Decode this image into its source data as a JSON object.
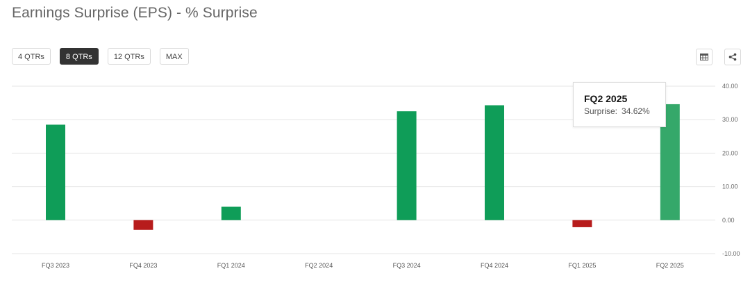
{
  "title": "Earnings Surprise (EPS) - % Surprise",
  "periods": [
    {
      "label": "4 QTRs",
      "active": false
    },
    {
      "label": "8 QTRs",
      "active": true
    },
    {
      "label": "12 QTRs",
      "active": false
    },
    {
      "label": "MAX",
      "active": false
    }
  ],
  "toolbar": {
    "table_icon": "table-icon",
    "share_icon": "share-icon"
  },
  "tooltip": {
    "title": "FQ2 2025",
    "label": "Surprise:",
    "value": "34.62%"
  },
  "colors": {
    "positive": "#0f9d58",
    "positive_highlight": "#35a86a",
    "negative": "#b71c1c",
    "grid": "#e6e6e6"
  },
  "chart_data": {
    "type": "bar",
    "title": "Earnings Surprise (EPS) - % Surprise",
    "categories": [
      "FQ3 2023",
      "FQ4 2023",
      "FQ1 2024",
      "FQ2 2024",
      "FQ3 2024",
      "FQ4 2024",
      "FQ1 2025",
      "FQ2 2025"
    ],
    "values": [
      28.5,
      -2.9,
      4.0,
      0,
      32.5,
      34.3,
      -2.1,
      34.62
    ],
    "ylim": [
      -10,
      40
    ],
    "yticks": [
      "40.00",
      "30.00",
      "20.00",
      "10.00",
      "0.00",
      "-10.00"
    ],
    "ytick_values": [
      40,
      30,
      20,
      10,
      0,
      -10
    ],
    "y_axis_side": "right",
    "grid": true,
    "highlighted_category": "FQ2 2025"
  }
}
